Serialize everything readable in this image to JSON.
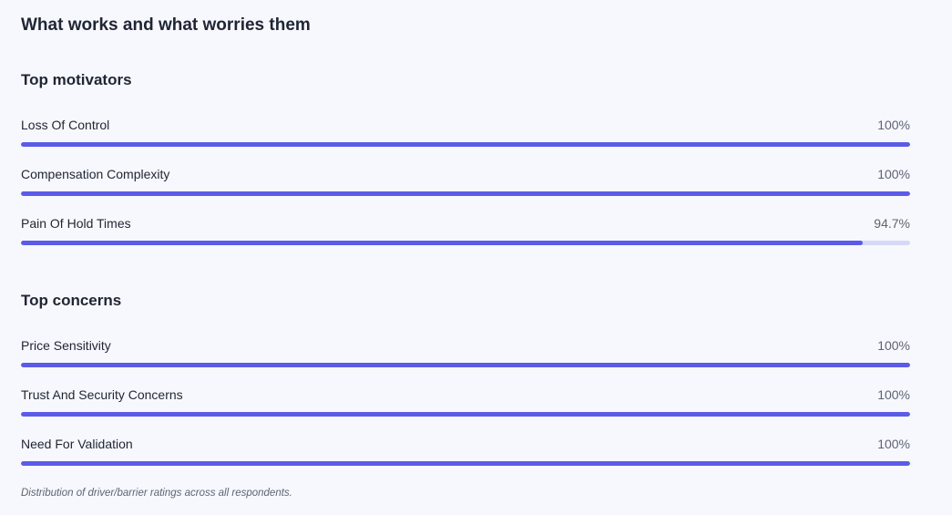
{
  "title": "What works and what worries them",
  "chart_data": [
    {
      "type": "bar",
      "title": "Top motivators",
      "categories": [
        "Loss Of Control",
        "Compensation Complexity",
        "Pain Of Hold Times"
      ],
      "values": [
        100,
        100,
        94.7
      ],
      "value_labels": [
        "100%",
        "100%",
        "94.7%"
      ],
      "ylim": [
        0,
        100
      ],
      "orientation": "horizontal",
      "colors": {
        "fill": "#5b5be8",
        "track": "#d6d9f6"
      }
    },
    {
      "type": "bar",
      "title": "Top concerns",
      "categories": [
        "Price Sensitivity",
        "Trust And Security Concerns",
        "Need For Validation"
      ],
      "values": [
        100,
        100,
        100
      ],
      "value_labels": [
        "100%",
        "100%",
        "100%"
      ],
      "ylim": [
        0,
        100
      ],
      "orientation": "horizontal",
      "colors": {
        "fill": "#5b5be8",
        "track": "#d6d9f6"
      }
    }
  ],
  "footnote": "Distribution of driver/barrier ratings across all respondents."
}
